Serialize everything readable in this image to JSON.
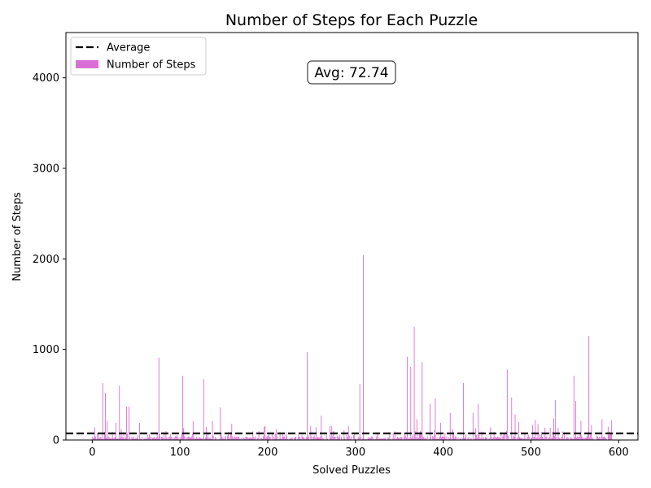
{
  "chart_data": {
    "type": "bar",
    "title": "Number of Steps for Each Puzzle",
    "xlabel": "Solved Puzzles",
    "ylabel": "Number of Steps",
    "xlim": [
      -30,
      622
    ],
    "ylim": [
      0,
      4500
    ],
    "x_ticks": [
      0,
      100,
      200,
      300,
      400,
      500,
      600
    ],
    "y_ticks": [
      0,
      1000,
      2000,
      3000,
      4000
    ],
    "grid": false,
    "legend_position": "top-left",
    "series": [
      {
        "name": "Number of Steps",
        "color": "#da70d6",
        "bar_count": 593,
        "peaks": [
          {
            "x": 12,
            "y": 630
          },
          {
            "x": 15,
            "y": 520
          },
          {
            "x": 17,
            "y": 210
          },
          {
            "x": 27,
            "y": 190
          },
          {
            "x": 31,
            "y": 600
          },
          {
            "x": 39,
            "y": 370
          },
          {
            "x": 42,
            "y": 370
          },
          {
            "x": 54,
            "y": 190
          },
          {
            "x": 76,
            "y": 910
          },
          {
            "x": 103,
            "y": 710
          },
          {
            "x": 115,
            "y": 210
          },
          {
            "x": 127,
            "y": 670
          },
          {
            "x": 137,
            "y": 210
          },
          {
            "x": 146,
            "y": 360
          },
          {
            "x": 159,
            "y": 180
          },
          {
            "x": 245,
            "y": 970
          },
          {
            "x": 261,
            "y": 270
          },
          {
            "x": 305,
            "y": 620
          },
          {
            "x": 309,
            "y": 2040
          },
          {
            "x": 359,
            "y": 920
          },
          {
            "x": 363,
            "y": 810
          },
          {
            "x": 367,
            "y": 1250
          },
          {
            "x": 370,
            "y": 230
          },
          {
            "x": 376,
            "y": 860
          },
          {
            "x": 385,
            "y": 400
          },
          {
            "x": 391,
            "y": 460
          },
          {
            "x": 397,
            "y": 190
          },
          {
            "x": 408,
            "y": 300
          },
          {
            "x": 423,
            "y": 630
          },
          {
            "x": 434,
            "y": 300
          },
          {
            "x": 440,
            "y": 400
          },
          {
            "x": 454,
            "y": 140
          },
          {
            "x": 473,
            "y": 780
          },
          {
            "x": 478,
            "y": 470
          },
          {
            "x": 482,
            "y": 280
          },
          {
            "x": 486,
            "y": 200
          },
          {
            "x": 505,
            "y": 220
          },
          {
            "x": 526,
            "y": 240
          },
          {
            "x": 528,
            "y": 440
          },
          {
            "x": 549,
            "y": 710
          },
          {
            "x": 551,
            "y": 430
          },
          {
            "x": 557,
            "y": 210
          },
          {
            "x": 566,
            "y": 1150
          },
          {
            "x": 581,
            "y": 230
          },
          {
            "x": 592,
            "y": 220
          }
        ],
        "typical_range": [
          0,
          120
        ]
      },
      {
        "name": "Average",
        "color": "#000000",
        "style": "dashed",
        "y": 72.74
      }
    ],
    "annotation": "Avg: 72.74"
  }
}
